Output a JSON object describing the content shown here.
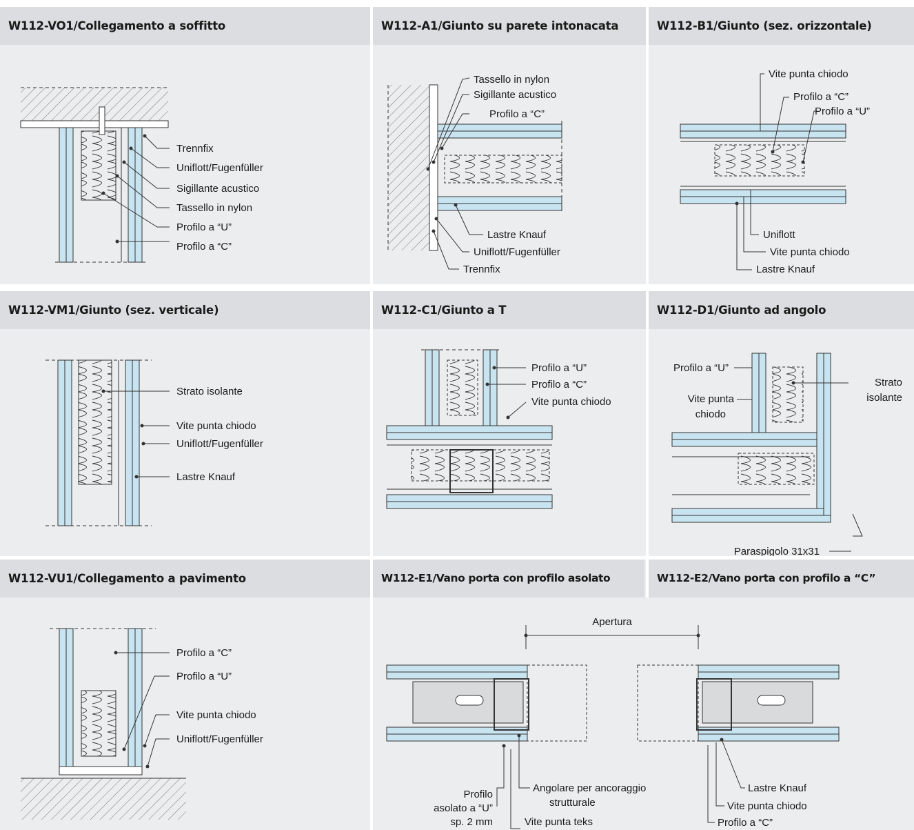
{
  "panels": {
    "vo1": {
      "title": "W112-VO1/Collegamento a soffitto",
      "labels": [
        "Trennfix",
        "Uniflott/Fugenfüller",
        "Sigillante acustico",
        "Tassello in nylon",
        "Profilo a “U”",
        "Profilo a “C”"
      ]
    },
    "a1": {
      "title": "W112-A1/Giunto su parete intonacata",
      "labels": [
        "Tassello in nylon",
        "Sigillante acustico",
        "Profilo a “C”",
        "Lastre Knauf",
        "Uniflott/Fugenfüller",
        "Trennfix"
      ]
    },
    "b1": {
      "title": "W112-B1/Giunto (sez. orizzontale)",
      "labels": [
        "Vite punta chiodo",
        "Profilo a “C”",
        "Profilo a “U”",
        "Uniflott",
        "Vite punta chiodo",
        "Lastre Knauf"
      ]
    },
    "vm1": {
      "title": "W112-VM1/Giunto (sez. verticale)",
      "labels": [
        "Strato isolante",
        "Vite punta chiodo",
        "Uniflott/Fugenfüller",
        "Lastre Knauf"
      ]
    },
    "c1": {
      "title": "W112-C1/Giunto a T",
      "labels": [
        "Profilo a “U”",
        "Profilo a “C”",
        "Vite punta chiodo"
      ]
    },
    "d1": {
      "title": "W112-D1/Giunto ad angolo",
      "labels": [
        "Profilo a “U”",
        "Vite punta",
        "chiodo",
        "Strato",
        "isolante",
        "Paraspigolo 31x31"
      ]
    },
    "vu1": {
      "title": "W112-VU1/Collegamento a pavimento",
      "labels": [
        "Profilo a “C”",
        "Profilo a “U”",
        "Vite punta chiodo",
        "Uniflott/Fugenfüller"
      ]
    },
    "e1": {
      "title": "W112-E1/Vano porta con profilo asolato",
      "labels": [
        "Apertura",
        "Angolare per ancoraggio",
        "strutturale",
        "Profilo",
        "asolato a “U”",
        "sp. 2 mm",
        "Vite punta teks"
      ]
    },
    "e2": {
      "title": "W112-E2/Vano porta con profilo a “C”",
      "labels": [
        "Lastre Knauf",
        "Vite punta chiodo",
        "Profilo a “C”"
      ]
    }
  },
  "colors": {
    "board": "#c9e4f1",
    "panel_bg": "#ecedef",
    "header_bg": "#dcdde0",
    "line": "#333333"
  }
}
